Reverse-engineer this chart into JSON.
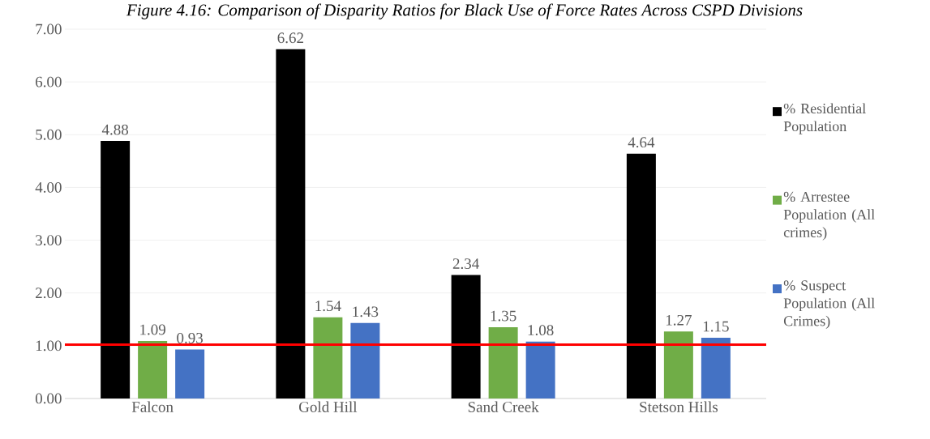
{
  "chart_data": {
    "type": "bar",
    "title": "Figure 4.16: Comparison of Disparity Ratios for Black Use of Force Rates Across CSPD Divisions",
    "categories": [
      "Falcon",
      "Gold Hill",
      "Sand Creek",
      "Stetson Hills"
    ],
    "series": [
      {
        "name": "% Residential Population",
        "color": "#000000",
        "values": [
          4.88,
          6.62,
          2.34,
          4.64
        ]
      },
      {
        "name": "% Arrestee Population (All crimes)",
        "color": "#70ad47",
        "values": [
          1.09,
          1.54,
          1.35,
          1.27
        ]
      },
      {
        "name": "% Suspect Population (All Crimes)",
        "color": "#4472c4",
        "values": [
          0.93,
          1.43,
          1.08,
          1.15
        ]
      }
    ],
    "ylim": [
      0,
      7
    ],
    "yticks": [
      {
        "value": 0,
        "label": "0.00"
      },
      {
        "value": 1,
        "label": "1.00"
      },
      {
        "value": 2,
        "label": "2.00"
      },
      {
        "value": 3,
        "label": "3.00"
      },
      {
        "value": 4,
        "label": "4.00"
      },
      {
        "value": 5,
        "label": "5.00"
      },
      {
        "value": 6,
        "label": "6.00"
      },
      {
        "value": 7,
        "label": "7.00"
      }
    ],
    "grid": "y",
    "legend": "right",
    "data_labels": true,
    "ref_lines": [
      {
        "axis": "y",
        "value": 1.02,
        "color": "#ff0000"
      }
    ]
  }
}
